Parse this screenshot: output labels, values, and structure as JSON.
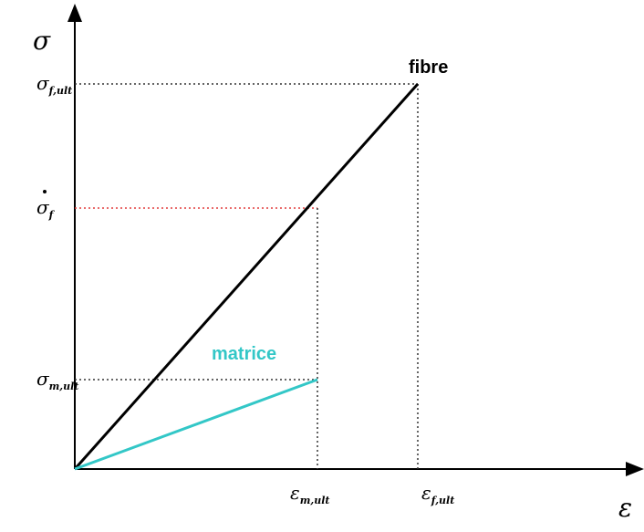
{
  "axes": {
    "y_symbol": "σ",
    "x_symbol": "ε"
  },
  "y_labels": [
    {
      "symbol": "σ",
      "sub": "f,ult"
    },
    {
      "symbol": "σ",
      "sub": "f"
    },
    {
      "symbol": "σ",
      "sub": "m,ult"
    }
  ],
  "x_labels": [
    {
      "symbol": "ε",
      "sub": "m,ult"
    },
    {
      "symbol": "ε",
      "sub": "f,ult"
    }
  ],
  "curves": [
    {
      "label": "fibre"
    },
    {
      "label": "matrice"
    }
  ]
}
